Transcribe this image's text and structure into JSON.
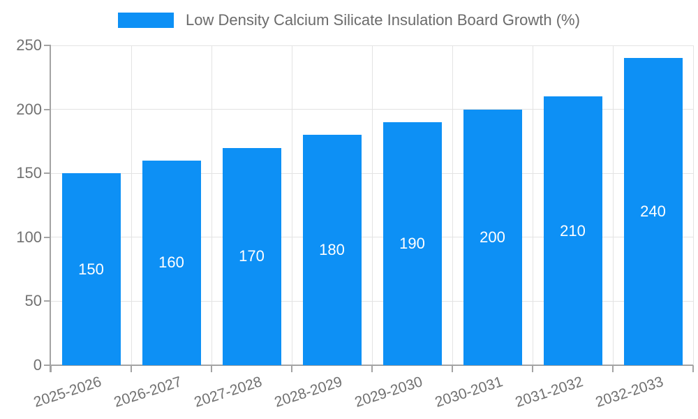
{
  "chart_data": {
    "type": "bar",
    "legend": "Low Density Calcium Silicate Insulation Board Growth (%)",
    "categories": [
      "2025-2026",
      "2026-2027",
      "2027-2028",
      "2028-2029",
      "2029-2030",
      "2030-2031",
      "2031-2032",
      "2032-2033"
    ],
    "values": [
      150,
      160,
      170,
      180,
      190,
      200,
      210,
      240
    ],
    "yticks": [
      0,
      50,
      100,
      150,
      200,
      250
    ],
    "ylim": [
      0,
      250
    ],
    "grid": true,
    "legend_position": "top-center",
    "bar_color": "#0d90f5",
    "bar_label_color": "#ffffff",
    "xlabel": "",
    "ylabel": ""
  }
}
